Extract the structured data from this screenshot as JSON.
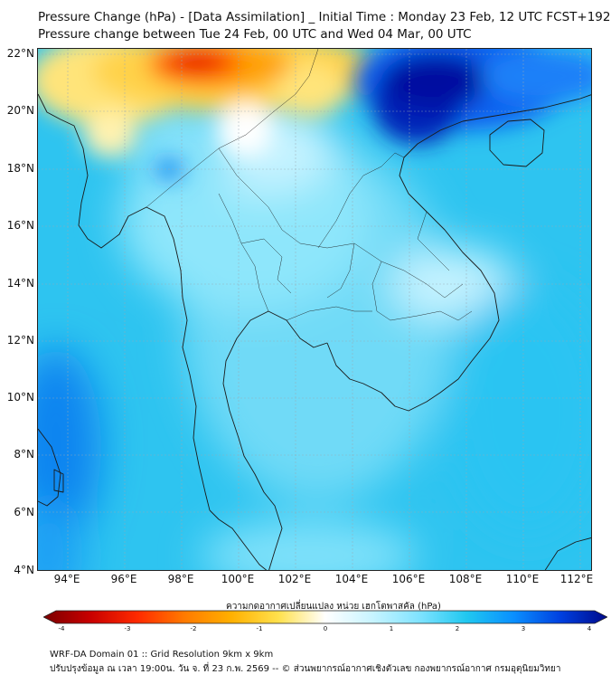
{
  "title_line1": "Pressure Change (hPa) - [Data Assimilation] _ Initial Time : Monday 23 Feb, 12 UTC FCST+192",
  "title_line2": "Pressure change between Tue 24 Feb, 00 UTC and Wed 04 Mar, 00 UTC",
  "lat_labels": [
    "22°N",
    "20°N",
    "18°N",
    "16°N",
    "14°N",
    "12°N",
    "10°N",
    "8°N",
    "6°N",
    "4°N"
  ],
  "lon_labels": [
    "94°E",
    "96°E",
    "98°E",
    "100°E",
    "102°E",
    "104°E",
    "106°E",
    "108°E",
    "110°E",
    "112°E"
  ],
  "colorbar": {
    "label": "ความกดอากาศเปลี่ยนแปลง หน่วย เฮกโตพาสคัล (hPa)",
    "ticks": [
      "-4",
      "-3",
      "-2",
      "-1",
      "0",
      "1",
      "2",
      "3",
      "4"
    ],
    "min": -4,
    "max": 4,
    "colors": [
      "#7a0000",
      "#c80000",
      "#ff2a00",
      "#ff7a00",
      "#ffb000",
      "#ffe14d",
      "#ffffff",
      "#c8f4ff",
      "#7fe3ff",
      "#20c8f0",
      "#0a90ff",
      "#0040e0",
      "#000a8a"
    ]
  },
  "footer_line1": "WRF-DA Domain 01 :: Grid Resolution 9km x 9km",
  "footer_line2": "ปรับปรุงข้อมูล ณ เวลา 19:00น. วัน จ. ที่ 23 ก.พ. 2569 -- © ส่วนพยากรณ์อากาศเชิงตัวเลข กองพยากรณ์อากาศ กรมอุตุนิยมวิทยา"
}
